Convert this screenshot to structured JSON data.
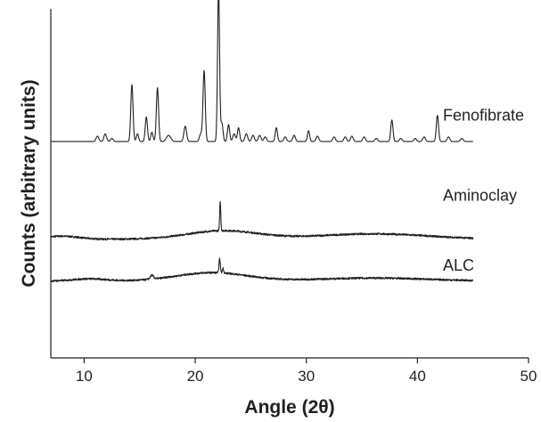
{
  "chart_data": {
    "type": "line",
    "xlabel": "Angle (2θ)",
    "ylabel": "Counts (arbitrary units)",
    "xlim": [
      7,
      50
    ],
    "x_ticks": [
      10,
      20,
      30,
      40,
      50
    ],
    "x_tick_labels": [
      "10",
      "20",
      "30",
      "40",
      "50"
    ],
    "y_axis_ticks": "none",
    "grid": false,
    "legend": "none",
    "color": "#231f20",
    "series": [
      {
        "name": "Fenofibrate",
        "x_range": [
          7,
          45
        ],
        "offset": 0.62,
        "baseline": 0,
        "peaks": [
          [
            11.2,
            0.035,
            0.12
          ],
          [
            11.9,
            0.05,
            0.12
          ],
          [
            12.5,
            0.02,
            0.12
          ],
          [
            14.3,
            0.37,
            0.1
          ],
          [
            14.8,
            0.05,
            0.1
          ],
          [
            15.6,
            0.16,
            0.1
          ],
          [
            16.1,
            0.06,
            0.1
          ],
          [
            16.6,
            0.35,
            0.1
          ],
          [
            17.6,
            0.04,
            0.2
          ],
          [
            19.1,
            0.1,
            0.12
          ],
          [
            20.5,
            0.05,
            0.12
          ],
          [
            20.8,
            0.46,
            0.1
          ],
          [
            22.1,
            1.0,
            0.09
          ],
          [
            22.4,
            0.12,
            0.1
          ],
          [
            23.0,
            0.11,
            0.1
          ],
          [
            23.5,
            0.05,
            0.12
          ],
          [
            23.9,
            0.09,
            0.1
          ],
          [
            24.6,
            0.05,
            0.12
          ],
          [
            25.2,
            0.04,
            0.12
          ],
          [
            25.8,
            0.04,
            0.12
          ],
          [
            26.3,
            0.03,
            0.12
          ],
          [
            27.3,
            0.09,
            0.1
          ],
          [
            28.1,
            0.03,
            0.12
          ],
          [
            28.9,
            0.04,
            0.12
          ],
          [
            30.2,
            0.07,
            0.1
          ],
          [
            31.0,
            0.035,
            0.12
          ],
          [
            32.5,
            0.03,
            0.12
          ],
          [
            33.5,
            0.03,
            0.12
          ],
          [
            34.1,
            0.035,
            0.12
          ],
          [
            35.2,
            0.03,
            0.12
          ],
          [
            36.3,
            0.02,
            0.12
          ],
          [
            37.7,
            0.14,
            0.1
          ],
          [
            38.5,
            0.02,
            0.12
          ],
          [
            39.8,
            0.02,
            0.12
          ],
          [
            40.6,
            0.03,
            0.12
          ],
          [
            41.8,
            0.17,
            0.1
          ],
          [
            42.8,
            0.03,
            0.12
          ],
          [
            44.0,
            0.02,
            0.12
          ]
        ]
      },
      {
        "name": "Aminoclay",
        "x_range": [
          7,
          45
        ],
        "offset": 0.34,
        "baseline": 0,
        "humps": [
          [
            8,
            0.02,
            1.5
          ],
          [
            22.5,
            0.055,
            3.2
          ],
          [
            36,
            0.035,
            5
          ]
        ],
        "peaks": [
          [
            22.25,
            0.19,
            0.05
          ]
        ]
      },
      {
        "name": "ALC",
        "x_range": [
          7,
          45
        ],
        "offset": 0.22,
        "baseline": 0,
        "humps": [
          [
            10.5,
            0.015,
            1.5
          ],
          [
            21.5,
            0.055,
            3.2
          ],
          [
            36,
            0.02,
            5
          ]
        ],
        "peaks": [
          [
            16.1,
            0.025,
            0.15
          ],
          [
            22.2,
            0.09,
            0.06
          ],
          [
            22.5,
            0.03,
            0.06
          ]
        ]
      }
    ]
  }
}
